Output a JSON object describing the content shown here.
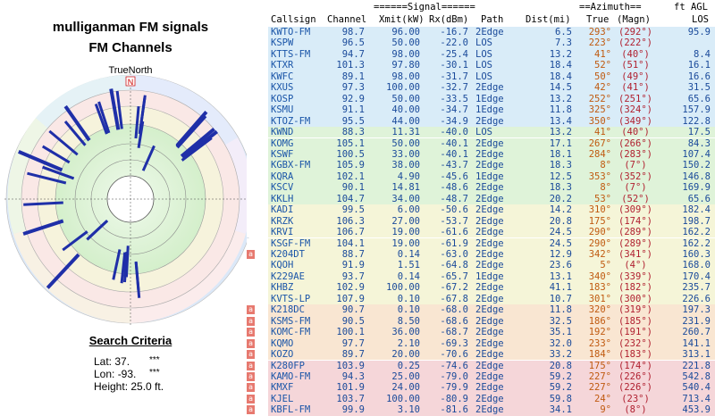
{
  "left_panel": {
    "title": "mulliganman FM signals",
    "subtitle": "FM Channels",
    "true_north_label": "TrueNorth",
    "north_marker": "N",
    "search_criteria": {
      "heading": "Search Criteria",
      "lat_label": "Lat: 37.",
      "lat_mask": "***",
      "lon_label": "Lon: -93.",
      "lon_mask": "***",
      "height": "Height: 25.0 ft."
    }
  },
  "table": {
    "headers": {
      "signal_group": "======Signal======",
      "azimuth_group": "==Azimuth==",
      "ft_agl": "ft AGL",
      "callsign": "Callsign",
      "channel": "Channel",
      "xmit": "Xmit(kW)",
      "rx": "Rx(dBm)",
      "path": "Path",
      "dist": "Dist(mi)",
      "true": "True",
      "magn": "(Magn)",
      "los": "LOS"
    },
    "row_tag": "a",
    "rows": [
      {
        "call": "KWTO-FM",
        "chan": "98.7",
        "xmit": "96.00",
        "rx": "-16.7",
        "path": "2Edge",
        "dist": "6.5",
        "true": "293°",
        "magn": "(292°)",
        "los": "95.9",
        "bg": "#d9ecf8",
        "tag": false
      },
      {
        "call": "KSPW",
        "chan": "96.5",
        "xmit": "50.00",
        "rx": "-22.0",
        "path": "LOS",
        "dist": "7.3",
        "true": "223°",
        "magn": "(222°)",
        "los": "",
        "bg": "#d9ecf8",
        "tag": false
      },
      {
        "call": "KTTS-FM",
        "chan": "94.7",
        "xmit": "98.00",
        "rx": "-25.4",
        "path": "LOS",
        "dist": "13.2",
        "true": "41°",
        "magn": "(40°)",
        "los": "8.4",
        "bg": "#d9ecf8",
        "tag": false
      },
      {
        "call": "KTXR",
        "chan": "101.3",
        "xmit": "97.80",
        "rx": "-30.1",
        "path": "LOS",
        "dist": "18.4",
        "true": "52°",
        "magn": "(51°)",
        "los": "16.1",
        "bg": "#d9ecf8",
        "tag": false
      },
      {
        "call": "KWFC",
        "chan": "89.1",
        "xmit": "98.00",
        "rx": "-31.7",
        "path": "LOS",
        "dist": "18.4",
        "true": "50°",
        "magn": "(49°)",
        "los": "16.6",
        "bg": "#d9ecf8",
        "tag": false
      },
      {
        "call": "KXUS",
        "chan": "97.3",
        "xmit": "100.00",
        "rx": "-32.7",
        "path": "2Edge",
        "dist": "14.5",
        "true": "42°",
        "magn": "(41°)",
        "los": "31.5",
        "bg": "#d9ecf8",
        "tag": false
      },
      {
        "call": "KOSP",
        "chan": "92.9",
        "xmit": "50.00",
        "rx": "-33.5",
        "path": "1Edge",
        "dist": "13.2",
        "true": "252°",
        "magn": "(251°)",
        "los": "65.6",
        "bg": "#d9ecf8",
        "tag": false
      },
      {
        "call": "KSMU",
        "chan": "91.1",
        "xmit": "40.00",
        "rx": "-34.7",
        "path": "1Edge",
        "dist": "11.8",
        "true": "325°",
        "magn": "(324°)",
        "los": "157.9",
        "bg": "#d9ecf8",
        "tag": false
      },
      {
        "call": "KTOZ-FM",
        "chan": "95.5",
        "xmit": "44.00",
        "rx": "-34.9",
        "path": "2Edge",
        "dist": "13.4",
        "true": "350°",
        "magn": "(349°)",
        "los": "122.8",
        "bg": "#d9ecf8",
        "tag": false
      },
      {
        "call": "KWND",
        "chan": "88.3",
        "xmit": "11.31",
        "rx": "-40.0",
        "path": "LOS",
        "dist": "13.2",
        "true": "41°",
        "magn": "(40°)",
        "los": "17.5",
        "bg": "#dff3d9",
        "tag": false
      },
      {
        "call": "KOMG",
        "chan": "105.1",
        "xmit": "50.00",
        "rx": "-40.1",
        "path": "2Edge",
        "dist": "17.1",
        "true": "267°",
        "magn": "(266°)",
        "los": "84.3",
        "bg": "#dff3d9",
        "tag": false
      },
      {
        "call": "KSWF",
        "chan": "100.5",
        "xmit": "33.00",
        "rx": "-40.1",
        "path": "2Edge",
        "dist": "18.1",
        "true": "284°",
        "magn": "(283°)",
        "los": "107.4",
        "bg": "#dff3d9",
        "tag": false
      },
      {
        "call": "KGBX-FM",
        "chan": "105.9",
        "xmit": "38.00",
        "rx": "-43.7",
        "path": "2Edge",
        "dist": "18.3",
        "true": "8°",
        "magn": "(7°)",
        "los": "150.2",
        "bg": "#dff3d9",
        "tag": false
      },
      {
        "call": "KQRA",
        "chan": "102.1",
        "xmit": "4.90",
        "rx": "-45.6",
        "path": "1Edge",
        "dist": "12.5",
        "true": "353°",
        "magn": "(352°)",
        "los": "146.8",
        "bg": "#dff3d9",
        "tag": false
      },
      {
        "call": "KSCV",
        "chan": "90.1",
        "xmit": "14.81",
        "rx": "-48.6",
        "path": "2Edge",
        "dist": "18.3",
        "true": "8°",
        "magn": "(7°)",
        "los": "169.9",
        "bg": "#dff3d9",
        "tag": false
      },
      {
        "call": "KKLH",
        "chan": "104.7",
        "xmit": "34.00",
        "rx": "-48.7",
        "path": "2Edge",
        "dist": "20.2",
        "true": "53°",
        "magn": "(52°)",
        "los": "65.6",
        "bg": "#dff3d9",
        "tag": false
      },
      {
        "call": "KADI",
        "chan": "99.5",
        "xmit": "6.00",
        "rx": "-50.6",
        "path": "2Edge",
        "dist": "14.2",
        "true": "310°",
        "magn": "(309°)",
        "los": "182.4",
        "bg": "#f5f5d8",
        "tag": false
      },
      {
        "call": "KRZK",
        "chan": "106.3",
        "xmit": "27.00",
        "rx": "-53.7",
        "path": "2Edge",
        "dist": "20.8",
        "true": "175°",
        "magn": "(174°)",
        "los": "198.7",
        "bg": "#f5f5d8",
        "tag": false
      },
      {
        "call": "KRVI",
        "chan": "106.7",
        "xmit": "19.00",
        "rx": "-61.6",
        "path": "2Edge",
        "dist": "24.5",
        "true": "290°",
        "magn": "(289°)",
        "los": "162.2",
        "bg": "#f5f5d8",
        "tag": false
      },
      {
        "call": "KSGF-FM",
        "chan": "104.1",
        "xmit": "19.00",
        "rx": "-61.9",
        "path": "2Edge",
        "dist": "24.5",
        "true": "290°",
        "magn": "(289°)",
        "los": "162.2",
        "bg": "#f5f5d8",
        "tag": false
      },
      {
        "call": "K204DT",
        "chan": "88.7",
        "xmit": "0.14",
        "rx": "-63.0",
        "path": "2Edge",
        "dist": "12.9",
        "true": "342°",
        "magn": "(341°)",
        "los": "160.3",
        "bg": "#f5f5d8",
        "tag": true
      },
      {
        "call": "KQOH",
        "chan": "91.9",
        "xmit": "1.51",
        "rx": "-64.8",
        "path": "2Edge",
        "dist": "23.6",
        "true": "5°",
        "magn": "(4°)",
        "los": "168.0",
        "bg": "#f5f5d8",
        "tag": false
      },
      {
        "call": "K229AE",
        "chan": "93.7",
        "xmit": "0.14",
        "rx": "-65.7",
        "path": "1Edge",
        "dist": "13.1",
        "true": "340°",
        "magn": "(339°)",
        "los": "170.4",
        "bg": "#f5f5d8",
        "tag": false
      },
      {
        "call": "KHBZ",
        "chan": "102.9",
        "xmit": "100.00",
        "rx": "-67.2",
        "path": "2Edge",
        "dist": "41.1",
        "true": "183°",
        "magn": "(182°)",
        "los": "235.7",
        "bg": "#f5f5d8",
        "tag": false
      },
      {
        "call": "KVTS-LP",
        "chan": "107.9",
        "xmit": "0.10",
        "rx": "-67.8",
        "path": "2Edge",
        "dist": "10.7",
        "true": "301°",
        "magn": "(300°)",
        "los": "226.6",
        "bg": "#f5f5d8",
        "tag": false
      },
      {
        "call": "K218DC",
        "chan": "90.7",
        "xmit": "0.10",
        "rx": "-68.0",
        "path": "2Edge",
        "dist": "11.8",
        "true": "320°",
        "magn": "(319°)",
        "los": "197.3",
        "bg": "#f9e6d2",
        "tag": true
      },
      {
        "call": "KSMS-FM",
        "chan": "90.5",
        "xmit": "8.50",
        "rx": "-68.6",
        "path": "2Edge",
        "dist": "32.5",
        "true": "186°",
        "magn": "(185°)",
        "los": "231.9",
        "bg": "#f9e6d2",
        "tag": true
      },
      {
        "call": "KOMC-FM",
        "chan": "100.1",
        "xmit": "36.00",
        "rx": "-68.7",
        "path": "2Edge",
        "dist": "35.1",
        "true": "192°",
        "magn": "(191°)",
        "los": "260.7",
        "bg": "#f9e6d2",
        "tag": true
      },
      {
        "call": "KQMO",
        "chan": "97.7",
        "xmit": "2.10",
        "rx": "-69.3",
        "path": "2Edge",
        "dist": "32.0",
        "true": "233°",
        "magn": "(232°)",
        "los": "141.1",
        "bg": "#f9e6d2",
        "tag": true
      },
      {
        "call": "KOZO",
        "chan": "89.7",
        "xmit": "20.00",
        "rx": "-70.6",
        "path": "2Edge",
        "dist": "33.2",
        "true": "184°",
        "magn": "(183°)",
        "los": "313.1",
        "bg": "#f9e6d2",
        "tag": true
      },
      {
        "call": "K280FP",
        "chan": "103.9",
        "xmit": "0.25",
        "rx": "-74.6",
        "path": "2Edge",
        "dist": "20.8",
        "true": "175°",
        "magn": "(174°)",
        "los": "221.8",
        "bg": "#f5d6d9",
        "tag": true
      },
      {
        "call": "KAMO-FM",
        "chan": "94.3",
        "xmit": "25.00",
        "rx": "-79.0",
        "path": "2Edge",
        "dist": "59.2",
        "true": "227°",
        "magn": "(226°)",
        "los": "542.8",
        "bg": "#f5d6d9",
        "tag": true
      },
      {
        "call": "KMXF",
        "chan": "101.9",
        "xmit": "24.00",
        "rx": "-79.9",
        "path": "2Edge",
        "dist": "59.2",
        "true": "227°",
        "magn": "(226°)",
        "los": "540.4",
        "bg": "#f5d6d9",
        "tag": true
      },
      {
        "call": "KJEL",
        "chan": "103.7",
        "xmit": "100.00",
        "rx": "-80.9",
        "path": "2Edge",
        "dist": "59.8",
        "true": "24°",
        "magn": "(23°)",
        "los": "713.4",
        "bg": "#f5d6d9",
        "tag": true
      },
      {
        "call": "KBFL-FM",
        "chan": "99.9",
        "xmit": "3.10",
        "rx": "-81.6",
        "path": "2Edge",
        "dist": "34.1",
        "true": "9°",
        "magn": "(8°)",
        "los": "453.9",
        "bg": "#f5d6d9",
        "tag": true
      }
    ]
  },
  "colors": {
    "callsign": "#1a55a8",
    "value": "#1a4a9a",
    "azimuth_true": "#c05a10",
    "magn": "#b02030",
    "tag_bg": "#e7796f",
    "bar": "#1f2fa8"
  }
}
